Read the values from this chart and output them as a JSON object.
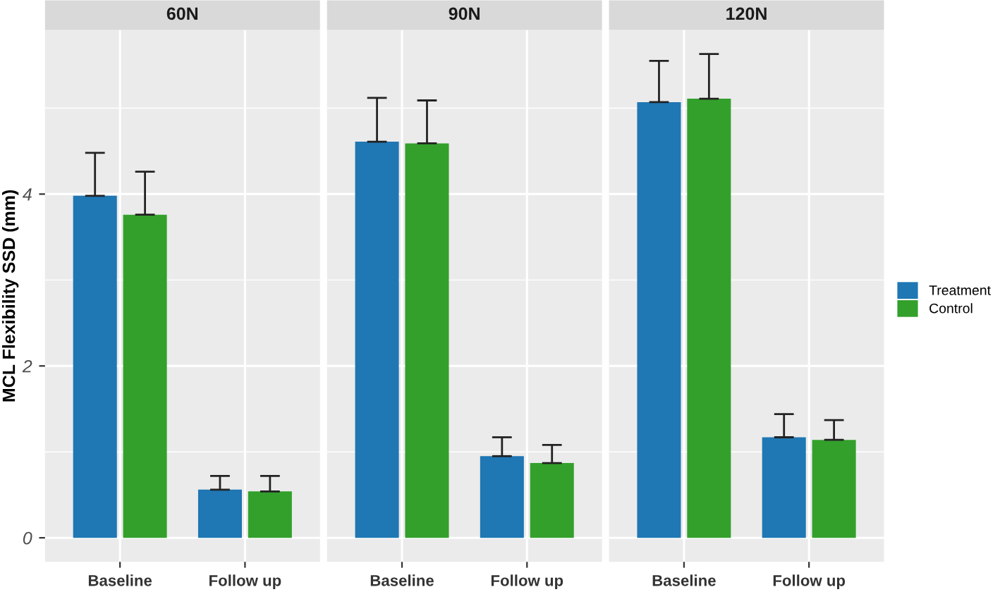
{
  "chart_data": [
    {
      "type": "bar",
      "title": "60N",
      "ylabel": "MCL Flexibility SSD (mm)",
      "categories": [
        "Baseline",
        "Follow up"
      ],
      "ylim": [
        -0.28,
        5.91
      ],
      "yticks": [
        0,
        2,
        4
      ],
      "grid": true,
      "series": [
        {
          "color": "#1f77b4",
          "values": [
            3.98,
            0.56
          ],
          "errors": [
            [
              3.98,
              4.48
            ],
            [
              0.56,
              0.72
            ]
          ]
        },
        {
          "color": "#33a02c",
          "values": [
            3.76,
            0.54
          ],
          "errors": [
            [
              3.76,
              4.26
            ],
            [
              0.54,
              0.72
            ]
          ]
        }
      ]
    },
    {
      "type": "bar",
      "title": "90N",
      "categories": [
        "Baseline",
        "Follow up"
      ],
      "ylim": [
        -0.28,
        5.91
      ],
      "tick_labels": "x",
      "grid": true,
      "series": [
        {
          "color": "#1f77b4",
          "values": [
            4.61,
            0.95
          ],
          "errors": [
            [
              4.61,
              5.12
            ],
            [
              0.95,
              1.17
            ]
          ]
        },
        {
          "color": "#33a02c",
          "values": [
            4.59,
            0.87
          ],
          "errors": [
            [
              4.59,
              5.09
            ],
            [
              0.87,
              1.08
            ]
          ]
        }
      ]
    },
    {
      "type": "bar",
      "title": "120N",
      "categories": [
        "Baseline",
        "Follow up"
      ],
      "ylim": [
        -0.28,
        5.91
      ],
      "tick_labels": "x",
      "grid": true,
      "legend": "right",
      "series": [
        {
          "name": "Treatment",
          "color": "#1f77b4",
          "values": [
            5.07,
            1.17
          ],
          "errors": [
            [
              5.07,
              5.55
            ],
            [
              1.17,
              1.44
            ]
          ]
        },
        {
          "name": "Control",
          "color": "#33a02c",
          "values": [
            5.11,
            1.14
          ],
          "errors": [
            [
              5.11,
              5.63
            ],
            [
              1.14,
              1.37
            ]
          ]
        }
      ]
    }
  ]
}
